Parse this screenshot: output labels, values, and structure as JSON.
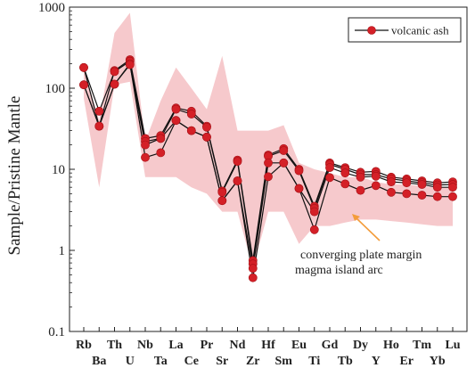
{
  "chart_data": {
    "type": "line",
    "ylabel": "Sample/Pristine Mantle",
    "yscale": "log",
    "ylim": [
      0.1,
      1000
    ],
    "yticks": [
      {
        "value": 0.1,
        "label": "0.1"
      },
      {
        "value": 1,
        "label": "1"
      },
      {
        "value": 10,
        "label": "10"
      },
      {
        "value": 100,
        "label": "100"
      },
      {
        "value": 1000,
        "label": "1000"
      }
    ],
    "categories": [
      "Rb",
      "Ba",
      "Th",
      "U",
      "Nb",
      "Ta",
      "La",
      "Ce",
      "Pr",
      "Sr",
      "Nd",
      "Zr",
      "Hf",
      "Sm",
      "Eu",
      "Ti",
      "Gd",
      "Tb",
      "Dy",
      "Y",
      "Ho",
      "Er",
      "Tm",
      "Yb",
      "Lu"
    ],
    "legend": {
      "label": "volcanic ash",
      "placement": "top-right"
    },
    "series_color": "#d42027",
    "band_color": "#f6c9cc",
    "series": [
      {
        "values": [
          180,
          34,
          165,
          225,
          24,
          26,
          57,
          52,
          34,
          5.4,
          13,
          0.75,
          15,
          18,
          10,
          3.5,
          12,
          10.5,
          9.2,
          9.4,
          8.0,
          7.6,
          7.2,
          6.8,
          7.0
        ]
      },
      {
        "values": [
          180,
          52,
          160,
          215,
          22,
          24,
          55,
          48,
          33,
          5.2,
          12.5,
          0.68,
          14.5,
          17,
          9.6,
          3.3,
          11.5,
          10,
          8.6,
          8.6,
          7.6,
          7.2,
          6.8,
          6.4,
          6.5
        ]
      },
      {
        "values": [
          110,
          34,
          112,
          200,
          14,
          16,
          40,
          30,
          25,
          4.1,
          7.2,
          0.46,
          8.1,
          12,
          5.8,
          1.8,
          7.9,
          6.6,
          5.5,
          6.3,
          5.2,
          5.0,
          4.8,
          4.6,
          4.6
        ]
      },
      {
        "values": [
          110,
          34,
          112,
          195,
          20,
          24,
          40,
          30,
          25,
          4.1,
          7.2,
          0.6,
          12,
          12,
          5.8,
          3.0,
          10.5,
          9,
          8,
          8.2,
          7,
          6.8,
          6.5,
          6.0,
          6.0
        ]
      }
    ],
    "band": {
      "name": "converging plate margin magma island arc",
      "upper": [
        180,
        40,
        480,
        850,
        22,
        70,
        180,
        100,
        55,
        250,
        30,
        30,
        30,
        35,
        12,
        10,
        9,
        8,
        8,
        7,
        6.5,
        6.5,
        6.2,
        6.0,
        6.0
      ],
      "lower": [
        75,
        6,
        110,
        120,
        8,
        8,
        8,
        6,
        5,
        3,
        3,
        0.6,
        3,
        3,
        1.2,
        2,
        2,
        2.2,
        2.4,
        2.4,
        2.3,
        2.2,
        2.1,
        2.0,
        2.0
      ]
    },
    "annotation": {
      "line1": "converging plate margin",
      "line2": "magma island arc"
    }
  }
}
